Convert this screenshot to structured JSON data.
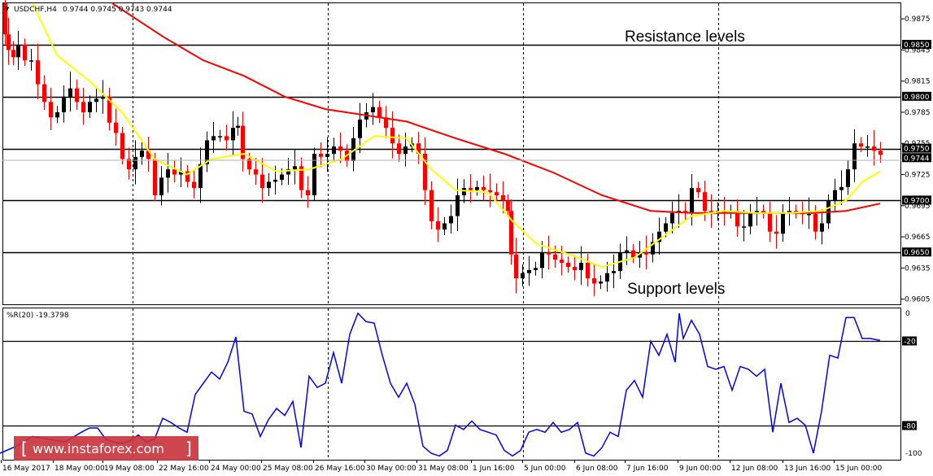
{
  "window": {
    "menu_arrow": "▼",
    "title": "USDCHF,H4",
    "ohlc": "0.9744 0.9745 0.9743 0.9744"
  },
  "annotations": {
    "resistance": "Resistance levels",
    "support": "Support levels"
  },
  "indicator": {
    "label": "%R(20) -19.3798"
  },
  "watermark": {
    "open_bracket": "[",
    "text": "www.instaforex.com",
    "close_bracket": "]"
  },
  "colors": {
    "bull_candle": "#000000",
    "bear_candle": "#ff0000",
    "ma_fast": "#ffff00",
    "ma_slow": "#ff0000",
    "wpr_line": "#0000ff",
    "level_line": "#000000",
    "price_tag": "#000000",
    "watermark_bg": "#c8323a"
  },
  "chart_data": [
    {
      "type": "candlestick",
      "symbol": "USDCHF",
      "timeframe": "H4",
      "ylim": [
        0.96,
        0.989
      ],
      "y_ticks": [
        "0.9875",
        "0.9845",
        "0.9815",
        "0.9785",
        "0.9755",
        "0.9725",
        "0.9695",
        "0.9665",
        "0.9635",
        "0.9605"
      ],
      "x_ticks": [
        "16 May 2017",
        "18 May 00:00",
        "19 May 08:00",
        "22 May 16:00",
        "24 May 00:00",
        "25 May 08:00",
        "26 May 16:00",
        "30 May 00:00",
        "31 May 08:00",
        "1 Jun 16:00",
        "5 Jun 00:00",
        "6 Jun 08:00",
        "7 Jun 16:00",
        "9 Jun 00:00",
        "12 Jun 08:00",
        "13 Jun 16:00",
        "15 Jun 00:00"
      ],
      "levels": [
        {
          "value": 0.985,
          "label": "0.9850"
        },
        {
          "value": 0.98,
          "label": "0.9800"
        },
        {
          "value": 0.975,
          "label": "0.9750"
        },
        {
          "value": 0.97,
          "label": "0.9700"
        },
        {
          "value": 0.965,
          "label": "0.9650"
        }
      ],
      "current_price": {
        "value": 0.9744,
        "label": "0.9744"
      },
      "close_path": [
        [
          0,
          0.989
        ],
        [
          6,
          0.986
        ],
        [
          10,
          0.9845
        ],
        [
          16,
          0.9838
        ],
        [
          22,
          0.985
        ],
        [
          30,
          0.9835
        ],
        [
          38,
          0.9835
        ],
        [
          46,
          0.9812
        ],
        [
          54,
          0.9795
        ],
        [
          62,
          0.978
        ],
        [
          70,
          0.9785
        ],
        [
          78,
          0.98
        ],
        [
          86,
          0.9808
        ],
        [
          94,
          0.9795
        ],
        [
          102,
          0.9785
        ],
        [
          110,
          0.9795
        ],
        [
          118,
          0.9798
        ],
        [
          126,
          0.98
        ],
        [
          134,
          0.9775
        ],
        [
          142,
          0.9765
        ],
        [
          150,
          0.974
        ],
        [
          158,
          0.973
        ],
        [
          166,
          0.9742
        ],
        [
          174,
          0.9748
        ],
        [
          182,
          0.974
        ],
        [
          190,
          0.9705
        ],
        [
          198,
          0.9722
        ],
        [
          206,
          0.973
        ],
        [
          214,
          0.9725
        ],
        [
          222,
          0.9728
        ],
        [
          230,
          0.9718
        ],
        [
          238,
          0.9712
        ],
        [
          246,
          0.9735
        ],
        [
          254,
          0.9758
        ],
        [
          262,
          0.9762
        ],
        [
          270,
          0.9762
        ],
        [
          278,
          0.9758
        ],
        [
          286,
          0.977
        ],
        [
          292,
          0.9772
        ],
        [
          298,
          0.974
        ],
        [
          306,
          0.973
        ],
        [
          314,
          0.9725
        ],
        [
          322,
          0.9712
        ],
        [
          330,
          0.9718
        ],
        [
          338,
          0.972
        ],
        [
          346,
          0.9725
        ],
        [
          354,
          0.973
        ],
        [
          362,
          0.9733
        ],
        [
          370,
          0.971
        ],
        [
          378,
          0.9705
        ],
        [
          386,
          0.9745
        ],
        [
          394,
          0.9742
        ],
        [
          402,
          0.9745
        ],
        [
          410,
          0.9752
        ],
        [
          418,
          0.9748
        ],
        [
          426,
          0.9738
        ],
        [
          434,
          0.976
        ],
        [
          442,
          0.9778
        ],
        [
          450,
          0.9785
        ],
        [
          458,
          0.979
        ],
        [
          466,
          0.978
        ],
        [
          474,
          0.977
        ],
        [
          482,
          0.9755
        ],
        [
          490,
          0.9745
        ],
        [
          498,
          0.9752
        ],
        [
          506,
          0.9755
        ],
        [
          514,
          0.9745
        ],
        [
          522,
          0.971
        ],
        [
          530,
          0.968
        ],
        [
          538,
          0.9672
        ],
        [
          546,
          0.9678
        ],
        [
          554,
          0.9685
        ],
        [
          562,
          0.9705
        ],
        [
          570,
          0.9712
        ],
        [
          578,
          0.971
        ],
        [
          586,
          0.9713
        ],
        [
          594,
          0.971
        ],
        [
          602,
          0.9708
        ],
        [
          610,
          0.9705
        ],
        [
          618,
          0.97
        ],
        [
          624,
          0.969
        ],
        [
          628,
          0.9648
        ],
        [
          634,
          0.9625
        ],
        [
          642,
          0.963
        ],
        [
          650,
          0.9633
        ],
        [
          658,
          0.9635
        ],
        [
          666,
          0.965
        ],
        [
          674,
          0.9648
        ],
        [
          682,
          0.9643
        ],
        [
          690,
          0.964
        ],
        [
          698,
          0.9636
        ],
        [
          706,
          0.9633
        ],
        [
          714,
          0.964
        ],
        [
          722,
          0.9625
        ],
        [
          730,
          0.962
        ],
        [
          738,
          0.9622
        ],
        [
          746,
          0.963
        ],
        [
          754,
          0.9632
        ],
        [
          762,
          0.965
        ],
        [
          770,
          0.9652
        ],
        [
          778,
          0.9645
        ],
        [
          786,
          0.965
        ],
        [
          794,
          0.9648
        ],
        [
          802,
          0.966
        ],
        [
          810,
          0.967
        ],
        [
          818,
          0.9678
        ],
        [
          826,
          0.9688
        ],
        [
          834,
          0.969
        ],
        [
          842,
          0.9688
        ],
        [
          850,
          0.9712
        ],
        [
          858,
          0.9708
        ],
        [
          866,
          0.969
        ],
        [
          874,
          0.9688
        ],
        [
          882,
          0.969
        ],
        [
          890,
          0.9688
        ],
        [
          898,
          0.969
        ],
        [
          906,
          0.9675
        ],
        [
          914,
          0.9675
        ],
        [
          922,
          0.9688
        ],
        [
          930,
          0.969
        ],
        [
          938,
          0.9688
        ],
        [
          946,
          0.967
        ],
        [
          954,
          0.9668
        ],
        [
          962,
          0.9688
        ],
        [
          970,
          0.969
        ],
        [
          978,
          0.9688
        ],
        [
          986,
          0.9687
        ],
        [
          994,
          0.9687
        ],
        [
          1002,
          0.967
        ],
        [
          1010,
          0.9678
        ],
        [
          1018,
          0.97
        ],
        [
          1026,
          0.971
        ],
        [
          1034,
          0.9713
        ],
        [
          1042,
          0.973
        ],
        [
          1050,
          0.9755
        ],
        [
          1058,
          0.9752
        ],
        [
          1066,
          0.9752
        ],
        [
          1074,
          0.9748
        ],
        [
          1082,
          0.9744
        ]
      ],
      "ma_fast_path": [
        [
          40,
          0.989
        ],
        [
          70,
          0.984
        ],
        [
          110,
          0.9815
        ],
        [
          150,
          0.9785
        ],
        [
          190,
          0.974
        ],
        [
          230,
          0.9725
        ],
        [
          260,
          0.974
        ],
        [
          300,
          0.9745
        ],
        [
          340,
          0.9728
        ],
        [
          380,
          0.973
        ],
        [
          420,
          0.974
        ],
        [
          460,
          0.9762
        ],
        [
          500,
          0.976
        ],
        [
          530,
          0.973
        ],
        [
          560,
          0.971
        ],
        [
          600,
          0.9708
        ],
        [
          630,
          0.968
        ],
        [
          660,
          0.9658
        ],
        [
          700,
          0.9648
        ],
        [
          740,
          0.9636
        ],
        [
          780,
          0.9645
        ],
        [
          820,
          0.9668
        ],
        [
          850,
          0.9685
        ],
        [
          890,
          0.969
        ],
        [
          930,
          0.9688
        ],
        [
          970,
          0.9688
        ],
        [
          1010,
          0.969
        ],
        [
          1040,
          0.97
        ],
        [
          1060,
          0.9718
        ],
        [
          1082,
          0.9728
        ]
      ],
      "ma_slow_path": [
        [
          138,
          0.989
        ],
        [
          200,
          0.9858
        ],
        [
          250,
          0.9835
        ],
        [
          300,
          0.982
        ],
        [
          350,
          0.98
        ],
        [
          400,
          0.9788
        ],
        [
          450,
          0.9782
        ],
        [
          500,
          0.9776
        ],
        [
          560,
          0.976
        ],
        [
          620,
          0.9745
        ],
        [
          680,
          0.9727
        ],
        [
          740,
          0.9705
        ],
        [
          800,
          0.969
        ],
        [
          850,
          0.9688
        ],
        [
          900,
          0.9688
        ],
        [
          950,
          0.9688
        ],
        [
          1000,
          0.9688
        ],
        [
          1040,
          0.969
        ],
        [
          1082,
          0.9697
        ]
      ]
    },
    {
      "type": "line",
      "title": "%R(20) -19.3798",
      "ylim": [
        -100,
        0
      ],
      "y_ticks": [
        "0",
        "-100"
      ],
      "levels": [
        {
          "value": -20,
          "label": "-20"
        },
        {
          "value": -80,
          "label": "-80"
        }
      ],
      "series": [
        {
          "values": [
            [
              0,
              -100
            ],
            [
              20,
              -95
            ],
            [
              40,
              -88
            ],
            [
              60,
              -90
            ],
            [
              80,
              -92
            ],
            [
              100,
              -85
            ],
            [
              110,
              -82
            ],
            [
              120,
              -82
            ],
            [
              130,
              -90
            ],
            [
              140,
              -92
            ],
            [
              150,
              -93
            ],
            [
              160,
              -91
            ],
            [
              170,
              -87
            ],
            [
              180,
              -92
            ],
            [
              190,
              -90
            ],
            [
              200,
              -75
            ],
            [
              210,
              -78
            ],
            [
              220,
              -82
            ],
            [
              230,
              -85
            ],
            [
              240,
              -58
            ],
            [
              250,
              -50
            ],
            [
              260,
              -42
            ],
            [
              270,
              -47
            ],
            [
              280,
              -35
            ],
            [
              290,
              -17
            ],
            [
              300,
              -70
            ],
            [
              310,
              -72
            ],
            [
              320,
              -88
            ],
            [
              330,
              -76
            ],
            [
              340,
              -68
            ],
            [
              350,
              -73
            ],
            [
              360,
              -63
            ],
            [
              370,
              -96
            ],
            [
              380,
              -45
            ],
            [
              390,
              -53
            ],
            [
              400,
              -50
            ],
            [
              410,
              -28
            ],
            [
              420,
              -50
            ],
            [
              430,
              -15
            ],
            [
              440,
              0
            ],
            [
              450,
              -6
            ],
            [
              460,
              -7
            ],
            [
              470,
              -30
            ],
            [
              480,
              -50
            ],
            [
              490,
              -60
            ],
            [
              500,
              -50
            ],
            [
              510,
              -65
            ],
            [
              520,
              -95
            ],
            [
              530,
              -100
            ],
            [
              540,
              -102
            ],
            [
              550,
              -98
            ],
            [
              560,
              -80
            ],
            [
              570,
              -83
            ],
            [
              580,
              -77
            ],
            [
              590,
              -83
            ],
            [
              600,
              -85
            ],
            [
              610,
              -87
            ],
            [
              620,
              -98
            ],
            [
              630,
              -102
            ],
            [
              640,
              -98
            ],
            [
              650,
              -85
            ],
            [
              660,
              -83
            ],
            [
              670,
              -85
            ],
            [
              680,
              -78
            ],
            [
              690,
              -85
            ],
            [
              700,
              -83
            ],
            [
              710,
              -78
            ],
            [
              720,
              -100
            ],
            [
              730,
              -102
            ],
            [
              740,
              -96
            ],
            [
              750,
              -85
            ],
            [
              760,
              -88
            ],
            [
              770,
              -55
            ],
            [
              780,
              -48
            ],
            [
              790,
              -60
            ],
            [
              800,
              -20
            ],
            [
              810,
              -30
            ],
            [
              820,
              -15
            ],
            [
              830,
              -35
            ],
            [
              835,
              0
            ],
            [
              840,
              -18
            ],
            [
              850,
              -5
            ],
            [
              860,
              -15
            ],
            [
              870,
              -38
            ],
            [
              880,
              -40
            ],
            [
              890,
              -38
            ],
            [
              900,
              -55
            ],
            [
              910,
              -38
            ],
            [
              920,
              -40
            ],
            [
              930,
              -45
            ],
            [
              940,
              -40
            ],
            [
              950,
              -85
            ],
            [
              960,
              -50
            ],
            [
              970,
              -78
            ],
            [
              980,
              -75
            ],
            [
              990,
              -80
            ],
            [
              1000,
              -100
            ],
            [
              1010,
              -70
            ],
            [
              1020,
              -30
            ],
            [
              1030,
              -32
            ],
            [
              1040,
              -3
            ],
            [
              1050,
              -3
            ],
            [
              1060,
              -18
            ],
            [
              1070,
              -18
            ],
            [
              1082,
              -19.4
            ]
          ]
        }
      ]
    }
  ]
}
